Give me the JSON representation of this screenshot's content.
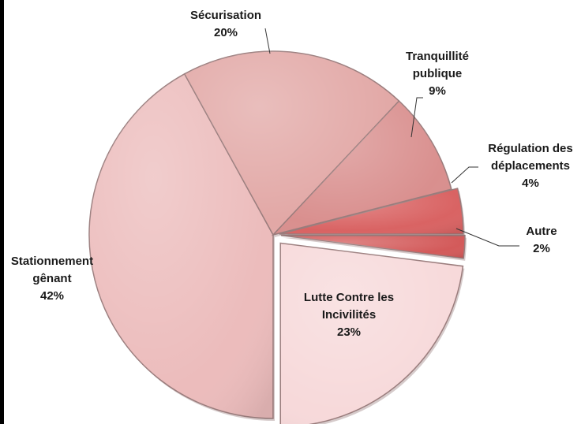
{
  "chart_data": {
    "type": "pie",
    "title": "",
    "start_direction": "clockwise from 3 o'clock",
    "slices": [
      {
        "label_lines": [
          "Autre"
        ],
        "value_label": "2%",
        "value": 2,
        "color": "#d35a5a"
      },
      {
        "label_lines": [
          "Lutte Contre les",
          "Incivilités"
        ],
        "value_label": "23%",
        "value": 23,
        "color": "#f7d9da"
      },
      {
        "label_lines": [
          "Stationnement",
          "gênant"
        ],
        "value_label": "42%",
        "value": 42,
        "color": "#ecbcbc"
      },
      {
        "label_lines": [
          "Sécurisation"
        ],
        "value_label": "20%",
        "value": 20,
        "color": "#e2a8a6"
      },
      {
        "label_lines": [
          "Tranquillité",
          "publique"
        ],
        "value_label": "9%",
        "value": 9,
        "color": "#d98f8e"
      },
      {
        "label_lines": [
          "Régulation des",
          "déplacements"
        ],
        "value_label": "4%",
        "value": 4,
        "color": "#d96363"
      }
    ]
  }
}
